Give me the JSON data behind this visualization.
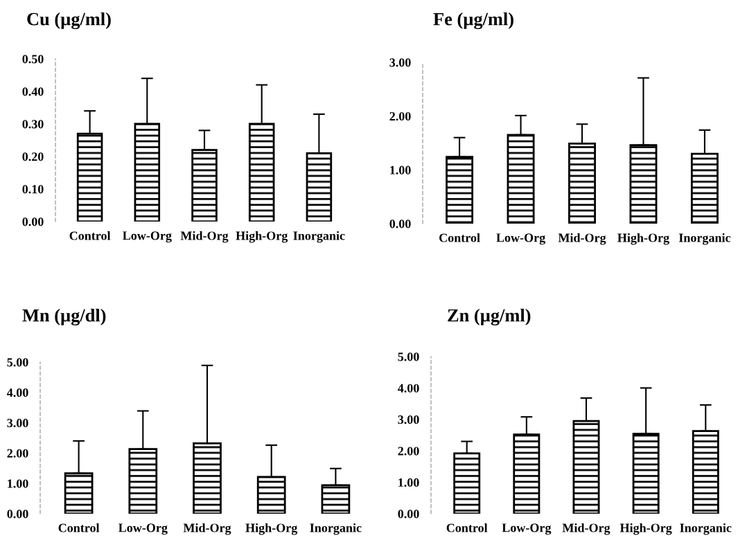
{
  "chart_data": [
    {
      "type": "bar",
      "title": "Cu (µg/ml)",
      "categories": [
        "Control",
        "Low-Org",
        "Mid-Org",
        "High-Org",
        "Inorganic"
      ],
      "values": [
        0.27,
        0.3,
        0.22,
        0.3,
        0.21
      ],
      "errors": [
        [
          0.27,
          0.34
        ],
        [
          0.3,
          0.44
        ],
        [
          0.22,
          0.28
        ],
        [
          0.3,
          0.42
        ],
        [
          0.21,
          0.33
        ]
      ],
      "color": "#000000",
      "ylim": [
        0,
        0.5
      ],
      "yticks": [
        {
          "value": 0,
          "label": "0.00"
        },
        {
          "value": 0.1,
          "label": "0.10"
        },
        {
          "value": 0.2,
          "label": "0.20"
        },
        {
          "value": 0.3,
          "label": "0.30"
        },
        {
          "value": 0.4,
          "label": "0.40"
        },
        {
          "value": 0.5,
          "label": "0.50"
        }
      ],
      "grid": false,
      "legend": false
    },
    {
      "type": "bar",
      "title": "Fe (µg/ml)",
      "categories": [
        "Control",
        "Low-Org",
        "Mid-Org",
        "High-Org",
        "Inorganic"
      ],
      "values": [
        1.24,
        1.65,
        1.49,
        1.46,
        1.3
      ],
      "errors": [
        [
          1.24,
          1.6
        ],
        [
          1.65,
          2.01
        ],
        [
          1.49,
          1.85
        ],
        [
          1.46,
          2.71
        ],
        [
          1.3,
          1.74
        ]
      ],
      "color": "#000000",
      "ylim": [
        0,
        3
      ],
      "yticks": [
        {
          "value": 0,
          "label": "0.00"
        },
        {
          "value": 1,
          "label": "1.00"
        },
        {
          "value": 2,
          "label": "2.00"
        },
        {
          "value": 3,
          "label": "3.00"
        }
      ],
      "grid": false,
      "legend": false
    },
    {
      "type": "bar",
      "title": "Mn (µg/dl)",
      "categories": [
        "Control",
        "Low-Org",
        "Mid-Org",
        "High-Org",
        "Inorganic"
      ],
      "values": [
        1.33,
        2.13,
        2.32,
        1.21,
        0.94
      ],
      "errors": [
        [
          1.33,
          2.4
        ],
        [
          2.13,
          3.39
        ],
        [
          2.32,
          4.89
        ],
        [
          1.21,
          2.26
        ],
        [
          0.94,
          1.49
        ]
      ],
      "color": "#000000",
      "ylim": [
        0,
        5
      ],
      "yticks": [
        {
          "value": 0,
          "label": "0.00"
        },
        {
          "value": 1,
          "label": "1.00"
        },
        {
          "value": 2,
          "label": "2.00"
        },
        {
          "value": 3,
          "label": "3.00"
        },
        {
          "value": 4,
          "label": "4.00"
        },
        {
          "value": 5,
          "label": "5.00"
        }
      ],
      "grid": false,
      "legend": false
    },
    {
      "type": "bar",
      "title": "Zn (µg/ml)",
      "categories": [
        "Control",
        "Low-Org",
        "Mid-Org",
        "High-Org",
        "Inorganic"
      ],
      "values": [
        1.92,
        2.52,
        2.95,
        2.54,
        2.63
      ],
      "errors": [
        [
          1.92,
          2.3
        ],
        [
          2.52,
          3.08
        ],
        [
          2.95,
          3.68
        ],
        [
          2.54,
          4.0
        ],
        [
          2.63,
          3.46
        ]
      ],
      "color": "#000000",
      "ylim": [
        0,
        5
      ],
      "yticks": [
        {
          "value": 0,
          "label": "0.00"
        },
        {
          "value": 1,
          "label": "1.00"
        },
        {
          "value": 2,
          "label": "2.00"
        },
        {
          "value": 3,
          "label": "3.00"
        },
        {
          "value": 4,
          "label": "4.00"
        },
        {
          "value": 5,
          "label": "5.00"
        }
      ],
      "grid": false,
      "legend": false
    }
  ]
}
